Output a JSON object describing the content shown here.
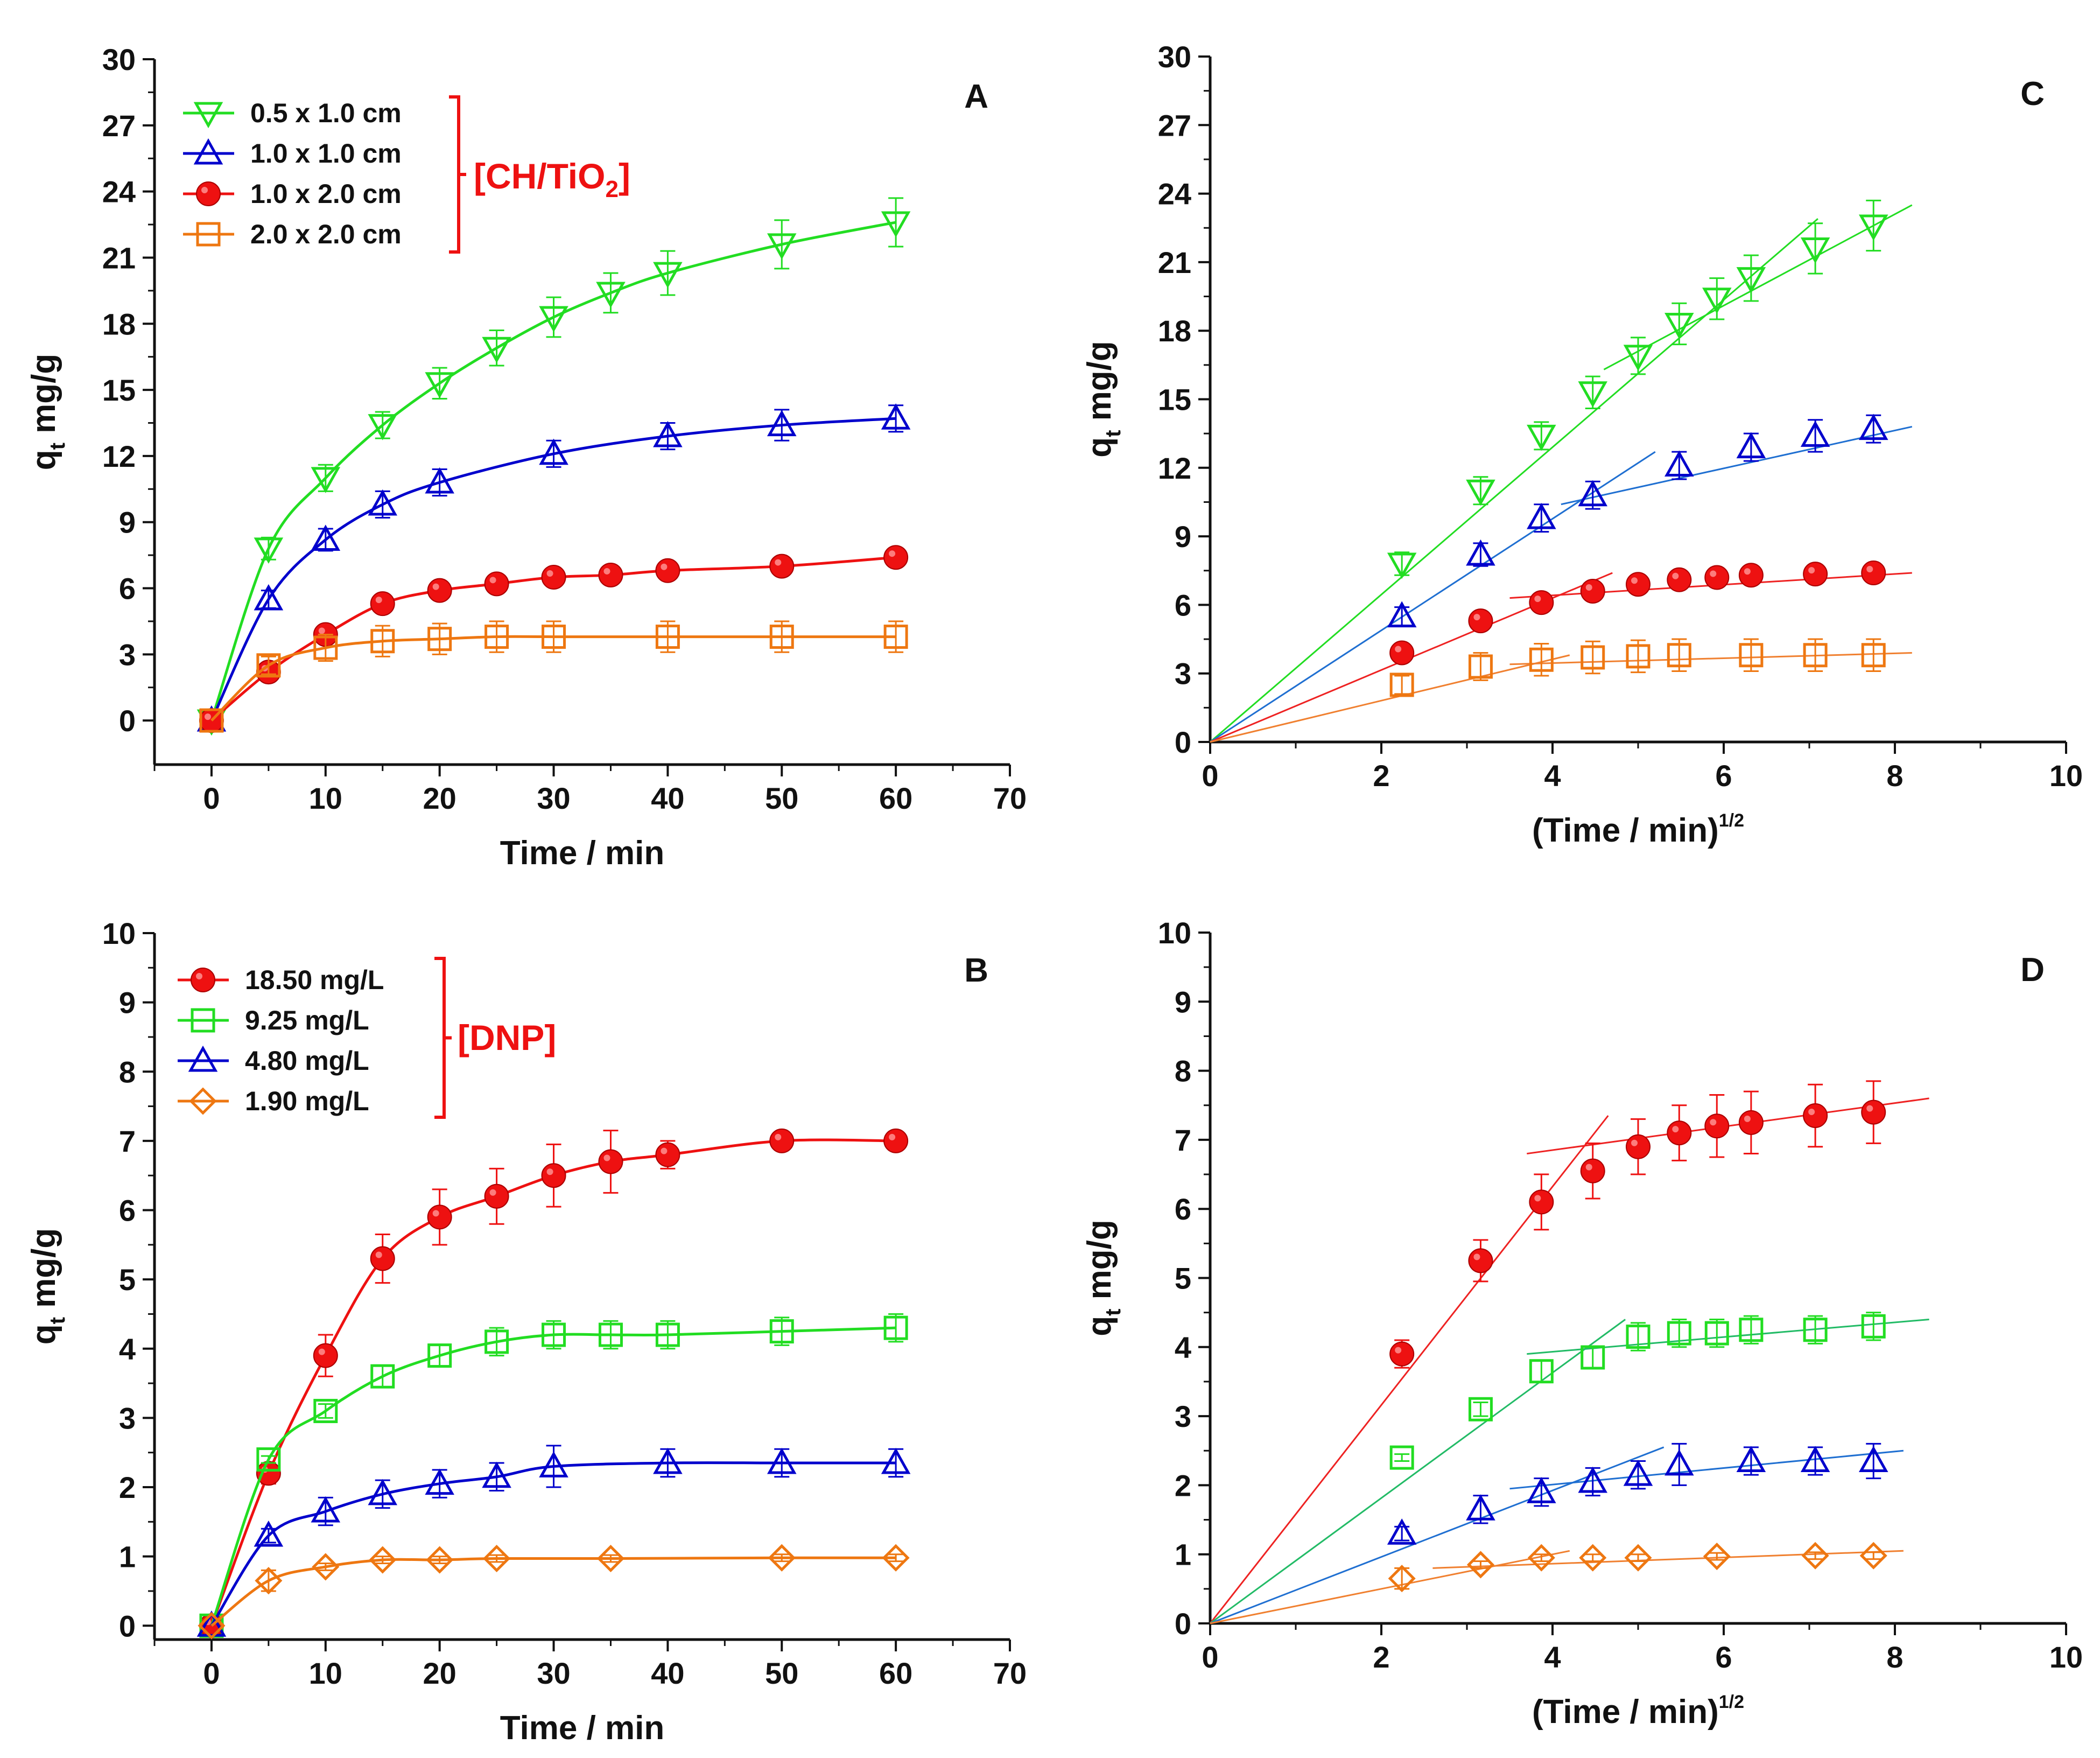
{
  "chart_data": [
    {
      "panel": "A",
      "type": "line",
      "xlabel": "Time / min",
      "ylabel": "q_t mg/g",
      "xlim": [
        -5,
        70
      ],
      "ylim": [
        -2,
        30
      ],
      "xticks": [
        0,
        10,
        20,
        30,
        40,
        50,
        60,
        70
      ],
      "yticks": [
        0,
        3,
        6,
        9,
        12,
        15,
        18,
        21,
        24,
        27,
        30
      ],
      "legend_position": "top-left",
      "group_label": "[CH/TiO",
      "group_label_sub": "2",
      "group_label_tail": "]",
      "series": [
        {
          "name": "0.5 x 1.0 cm",
          "marker": "triangle-down",
          "color": "#22dd22",
          "fill": "none",
          "x": [
            0,
            5,
            10,
            15,
            20,
            25,
            30,
            35,
            40,
            50,
            60
          ],
          "y": [
            0,
            7.8,
            11.0,
            13.4,
            15.3,
            16.9,
            18.3,
            19.4,
            20.3,
            21.6,
            22.6
          ],
          "err": [
            0,
            0.5,
            0.6,
            0.6,
            0.7,
            0.8,
            0.9,
            0.9,
            1.0,
            1.1,
            1.1
          ]
        },
        {
          "name": "1.0 x 1.0 cm",
          "marker": "triangle-up",
          "color": "#0000cc",
          "fill": "none",
          "x": [
            0,
            5,
            10,
            15,
            20,
            30,
            40,
            50,
            60
          ],
          "y": [
            0,
            5.5,
            8.2,
            9.8,
            10.8,
            12.1,
            12.9,
            13.4,
            13.7
          ],
          "err": [
            0,
            0.4,
            0.5,
            0.6,
            0.6,
            0.6,
            0.6,
            0.7,
            0.6
          ]
        },
        {
          "name": "1.0 x 2.0 cm",
          "marker": "circle",
          "color": "#ee1111",
          "fill": "#ee1111",
          "x": [
            0,
            5,
            10,
            15,
            20,
            25,
            30,
            35,
            40,
            50,
            60
          ],
          "y": [
            0,
            2.2,
            3.9,
            5.3,
            5.9,
            6.2,
            6.5,
            6.6,
            6.8,
            7.0,
            7.4
          ],
          "err": [
            0,
            0,
            0,
            0,
            0,
            0,
            0,
            0,
            0,
            0,
            0
          ]
        },
        {
          "name": "2.0 x 2.0 cm",
          "marker": "square",
          "color": "#ee7711",
          "fill": "none",
          "x": [
            0,
            5,
            10,
            15,
            20,
            25,
            30,
            40,
            50,
            60
          ],
          "y": [
            0,
            2.5,
            3.3,
            3.6,
            3.7,
            3.8,
            3.8,
            3.8,
            3.8,
            3.8
          ],
          "err": [
            0,
            0.4,
            0.6,
            0.7,
            0.7,
            0.7,
            0.7,
            0.7,
            0.7,
            0.7
          ]
        }
      ]
    },
    {
      "panel": "B",
      "type": "line",
      "xlabel": "Time / min",
      "ylabel": "q_t mg/g",
      "xlim": [
        -5,
        70
      ],
      "ylim": [
        -0.2,
        10
      ],
      "xticks": [
        0,
        10,
        20,
        30,
        40,
        50,
        60,
        70
      ],
      "yticks": [
        0,
        1,
        2,
        3,
        4,
        5,
        6,
        7,
        8,
        9,
        10
      ],
      "legend_position": "top-left",
      "group_label": "[DNP]",
      "series": [
        {
          "name": "18.50 mg/L",
          "marker": "circle",
          "color": "#ee1111",
          "fill": "#ee1111",
          "x": [
            0,
            5,
            10,
            15,
            20,
            25,
            30,
            35,
            40,
            50,
            60
          ],
          "y": [
            0,
            2.2,
            3.9,
            5.3,
            5.9,
            6.2,
            6.5,
            6.7,
            6.8,
            7.0,
            7.0
          ],
          "err": [
            0,
            0.15,
            0.3,
            0.35,
            0.4,
            0.4,
            0.45,
            0.45,
            0.2,
            0.1,
            0.05
          ]
        },
        {
          "name": "9.25 mg/L",
          "marker": "square",
          "color": "#22dd22",
          "fill": "none",
          "x": [
            0,
            5,
            10,
            15,
            20,
            25,
            30,
            35,
            40,
            50,
            60
          ],
          "y": [
            0,
            2.4,
            3.1,
            3.6,
            3.9,
            4.1,
            4.2,
            4.2,
            4.2,
            4.25,
            4.3
          ],
          "err": [
            0,
            0.05,
            0.1,
            0.15,
            0.15,
            0.2,
            0.2,
            0.2,
            0.2,
            0.2,
            0.2
          ]
        },
        {
          "name": "4.80 mg/L",
          "marker": "triangle-up",
          "color": "#0000cc",
          "fill": "none",
          "x": [
            0,
            5,
            10,
            15,
            20,
            25,
            30,
            40,
            50,
            60
          ],
          "y": [
            0,
            1.3,
            1.65,
            1.9,
            2.05,
            2.15,
            2.3,
            2.35,
            2.35,
            2.35
          ],
          "err": [
            0,
            0.1,
            0.2,
            0.2,
            0.2,
            0.2,
            0.3,
            0.2,
            0.2,
            0.2
          ]
        },
        {
          "name": "1.90 mg/L",
          "marker": "diamond",
          "color": "#ee7711",
          "fill": "none",
          "x": [
            0,
            5,
            10,
            15,
            20,
            25,
            35,
            50,
            60
          ],
          "y": [
            0,
            0.65,
            0.85,
            0.95,
            0.95,
            0.97,
            0.97,
            0.98,
            0.98
          ],
          "err": [
            0,
            0.15,
            0.05,
            0.05,
            0.05,
            0.05,
            0.05,
            0.05,
            0.05
          ]
        }
      ]
    },
    {
      "panel": "C",
      "type": "scatter",
      "xlabel": "(Time / min)",
      "xlabel_sup": "1/2",
      "ylabel": "q_t mg/g",
      "xlim": [
        0,
        10
      ],
      "ylim": [
        0,
        30
      ],
      "xticks": [
        0,
        2,
        4,
        6,
        8,
        10
      ],
      "yticks": [
        0,
        3,
        6,
        9,
        12,
        15,
        18,
        21,
        24,
        27,
        30
      ],
      "series": [
        {
          "name": "0.5 x 1.0 cm",
          "marker": "triangle-down",
          "color": "#22dd22",
          "fill": "none",
          "x": [
            2.24,
            3.16,
            3.87,
            4.47,
            5.0,
            5.48,
            5.92,
            6.32,
            7.07,
            7.75
          ],
          "y": [
            7.8,
            11.0,
            13.4,
            15.3,
            16.9,
            18.3,
            19.4,
            20.3,
            21.6,
            22.6
          ],
          "err": [
            0.5,
            0.6,
            0.6,
            0.7,
            0.8,
            0.9,
            0.9,
            1.0,
            1.1,
            1.1
          ]
        },
        {
          "name": "1.0 x 1.0 cm",
          "marker": "triangle-up",
          "color": "#0000cc",
          "fill": "none",
          "x": [
            2.24,
            3.16,
            3.87,
            4.47,
            5.48,
            6.32,
            7.07,
            7.75
          ],
          "y": [
            5.5,
            8.2,
            9.8,
            10.8,
            12.1,
            12.9,
            13.4,
            13.7
          ],
          "err": [
            0.4,
            0.5,
            0.6,
            0.6,
            0.6,
            0.6,
            0.7,
            0.6
          ]
        },
        {
          "name": "1.0 x 2.0 cm",
          "marker": "circle",
          "color": "#ee1111",
          "fill": "#ee1111",
          "x": [
            2.24,
            3.16,
            3.87,
            4.47,
            5.0,
            5.48,
            5.92,
            6.32,
            7.07,
            7.75
          ],
          "y": [
            3.9,
            5.3,
            6.1,
            6.6,
            6.9,
            7.1,
            7.2,
            7.3,
            7.35,
            7.4
          ],
          "err": [
            0,
            0,
            0,
            0,
            0,
            0,
            0,
            0,
            0,
            0
          ]
        },
        {
          "name": "2.0 x 2.0 cm",
          "marker": "square",
          "color": "#ee7711",
          "fill": "none",
          "x": [
            2.24,
            3.16,
            3.87,
            4.47,
            5.0,
            5.48,
            6.32,
            7.07,
            7.75
          ],
          "y": [
            2.5,
            3.3,
            3.6,
            3.7,
            3.75,
            3.8,
            3.8,
            3.8,
            3.8
          ],
          "err": [
            0.4,
            0.6,
            0.7,
            0.7,
            0.7,
            0.7,
            0.7,
            0.7,
            0.7
          ]
        }
      ],
      "fit_lines": [
        {
          "color": "#22dd22",
          "x": [
            0,
            7.1
          ],
          "y": [
            0,
            22.9
          ]
        },
        {
          "color": "#22dd22",
          "x": [
            4.6,
            8.2
          ],
          "y": [
            16.3,
            23.5
          ]
        },
        {
          "color": "#1f6fd1",
          "x": [
            0,
            5.2
          ],
          "y": [
            0,
            12.7
          ]
        },
        {
          "color": "#1f6fd1",
          "x": [
            4.1,
            8.2
          ],
          "y": [
            10.4,
            13.8
          ]
        },
        {
          "color": "#ee2222",
          "x": [
            0,
            4.7
          ],
          "y": [
            0,
            7.4
          ]
        },
        {
          "color": "#ee2222",
          "x": [
            3.5,
            8.2
          ],
          "y": [
            6.3,
            7.4
          ]
        },
        {
          "color": "#f08030",
          "x": [
            0,
            4.2
          ],
          "y": [
            0,
            3.8
          ]
        },
        {
          "color": "#f08030",
          "x": [
            3.5,
            8.2
          ],
          "y": [
            3.4,
            3.9
          ]
        }
      ]
    },
    {
      "panel": "D",
      "type": "scatter",
      "xlabel": "(Time / min)",
      "xlabel_sup": "1/2",
      "ylabel": "q_t mg/g",
      "xlim": [
        0,
        10
      ],
      "ylim": [
        0,
        10
      ],
      "xticks": [
        0,
        2,
        4,
        6,
        8,
        10
      ],
      "yticks": [
        0,
        1,
        2,
        3,
        4,
        5,
        6,
        7,
        8,
        9,
        10
      ],
      "series": [
        {
          "name": "18.50 mg/L",
          "marker": "circle",
          "color": "#ee1111",
          "fill": "#ee1111",
          "x": [
            2.24,
            3.16,
            3.87,
            4.47,
            5.0,
            5.48,
            5.92,
            6.32,
            7.07,
            7.75
          ],
          "y": [
            3.9,
            5.25,
            6.1,
            6.55,
            6.9,
            7.1,
            7.2,
            7.25,
            7.35,
            7.4
          ],
          "err": [
            0.2,
            0.3,
            0.4,
            0.4,
            0.4,
            0.4,
            0.45,
            0.45,
            0.45,
            0.45
          ]
        },
        {
          "name": "9.25 mg/L",
          "marker": "square",
          "color": "#22dd22",
          "fill": "none",
          "x": [
            2.24,
            3.16,
            3.87,
            4.47,
            5.0,
            5.48,
            5.92,
            6.32,
            7.07,
            7.75
          ],
          "y": [
            2.4,
            3.1,
            3.65,
            3.85,
            4.15,
            4.2,
            4.2,
            4.25,
            4.25,
            4.3
          ],
          "err": [
            0.05,
            0.1,
            0.15,
            0.15,
            0.2,
            0.2,
            0.2,
            0.2,
            0.2,
            0.2
          ]
        },
        {
          "name": "4.80 mg/L",
          "marker": "triangle-up",
          "color": "#0000cc",
          "fill": "none",
          "x": [
            2.24,
            3.16,
            3.87,
            4.47,
            5.0,
            5.48,
            6.32,
            7.07,
            7.75
          ],
          "y": [
            1.3,
            1.65,
            1.9,
            2.05,
            2.15,
            2.3,
            2.35,
            2.35,
            2.35
          ],
          "err": [
            0.1,
            0.2,
            0.2,
            0.2,
            0.2,
            0.3,
            0.2,
            0.2,
            0.25
          ]
        },
        {
          "name": "1.90 mg/L",
          "marker": "diamond",
          "color": "#ee7711",
          "fill": "none",
          "x": [
            2.24,
            3.16,
            3.87,
            4.47,
            5.0,
            5.92,
            7.07,
            7.75
          ],
          "y": [
            0.65,
            0.85,
            0.95,
            0.95,
            0.95,
            0.97,
            0.98,
            0.98
          ],
          "err": [
            0.15,
            0.05,
            0.05,
            0.05,
            0.05,
            0.05,
            0.05,
            0.05
          ]
        }
      ],
      "fit_lines": [
        {
          "color": "#ee2222",
          "x": [
            0,
            4.65
          ],
          "y": [
            0,
            7.35
          ]
        },
        {
          "color": "#ee2222",
          "x": [
            3.7,
            8.4
          ],
          "y": [
            6.8,
            7.6
          ]
        },
        {
          "color": "#22bb66",
          "x": [
            0,
            4.85
          ],
          "y": [
            0,
            4.4
          ]
        },
        {
          "color": "#22bb66",
          "x": [
            3.7,
            8.4
          ],
          "y": [
            3.9,
            4.4
          ]
        },
        {
          "color": "#1f6fd1",
          "x": [
            0,
            5.3
          ],
          "y": [
            0,
            2.55
          ]
        },
        {
          "color": "#1f6fd1",
          "x": [
            3.5,
            8.1
          ],
          "y": [
            1.95,
            2.5
          ]
        },
        {
          "color": "#f08030",
          "x": [
            0,
            4.2
          ],
          "y": [
            0,
            1.05
          ]
        },
        {
          "color": "#f08030",
          "x": [
            2.6,
            8.1
          ],
          "y": [
            0.8,
            1.05
          ]
        }
      ]
    }
  ]
}
